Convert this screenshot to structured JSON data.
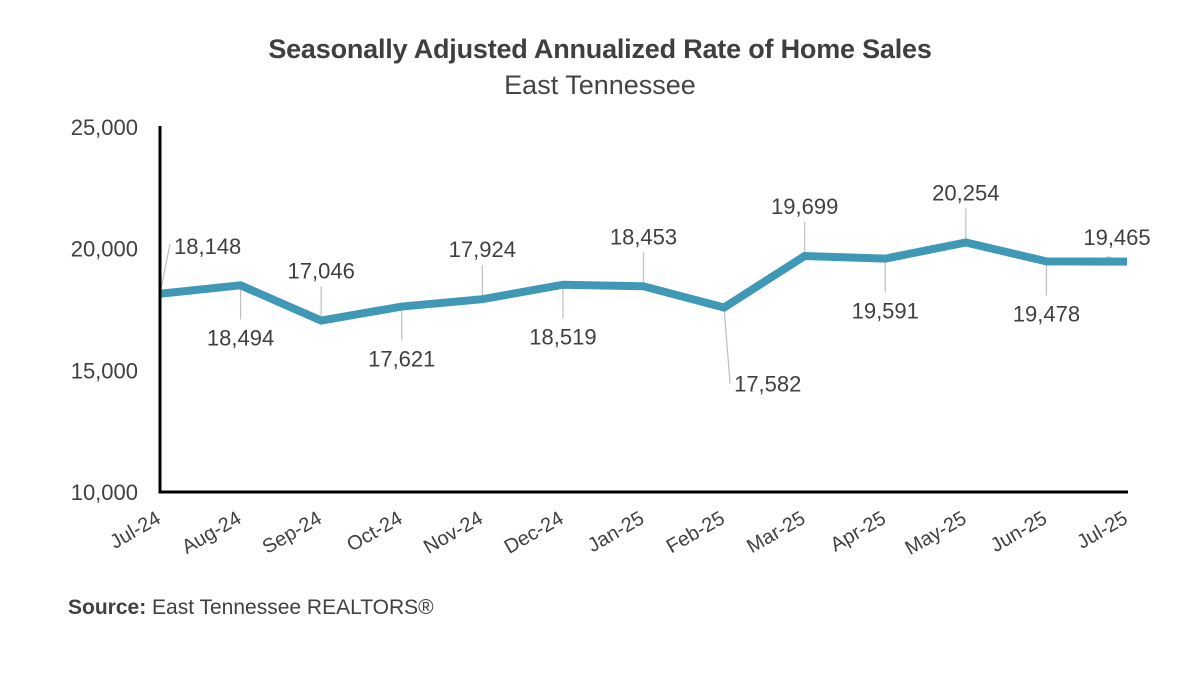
{
  "chart_data": {
    "type": "line",
    "title": "Seasonally Adjusted Annualized Rate of Home Sales",
    "subtitle": "East Tennessee",
    "xlabel": "",
    "ylabel": "",
    "ylim": [
      10000,
      25000
    ],
    "yticks": [
      10000,
      15000,
      20000,
      25000
    ],
    "ytick_labels": [
      "10,000",
      "15,000",
      "20,000",
      "25,000"
    ],
    "grid": false,
    "legend": "none",
    "categories": [
      "Jul-24",
      "Aug-24",
      "Sep-24",
      "Oct-24",
      "Nov-24",
      "Dec-24",
      "Jan-25",
      "Feb-25",
      "Mar-25",
      "Apr-25",
      "May-25",
      "Jun-25",
      "Jul-25"
    ],
    "series": [
      {
        "name": "SAAR Home Sales",
        "color": "#3f98b5",
        "values": [
          18148,
          18494,
          17046,
          17621,
          17924,
          18519,
          18453,
          17582,
          19699,
          19591,
          20254,
          19478,
          19465
        ],
        "data_labels": [
          "18,148",
          "18,494",
          "17,046",
          "17,621",
          "17,924",
          "18,519",
          "18,453",
          "17,582",
          "19,699",
          "19,591",
          "20,254",
          "19,478",
          "19,465"
        ],
        "label_positions": [
          "above",
          "below",
          "above",
          "below",
          "above",
          "below",
          "above",
          "below",
          "above",
          "below",
          "above",
          "below",
          "above"
        ]
      }
    ]
  },
  "source": {
    "label": "Source:",
    "text": " East Tennessee REALTORS®"
  }
}
